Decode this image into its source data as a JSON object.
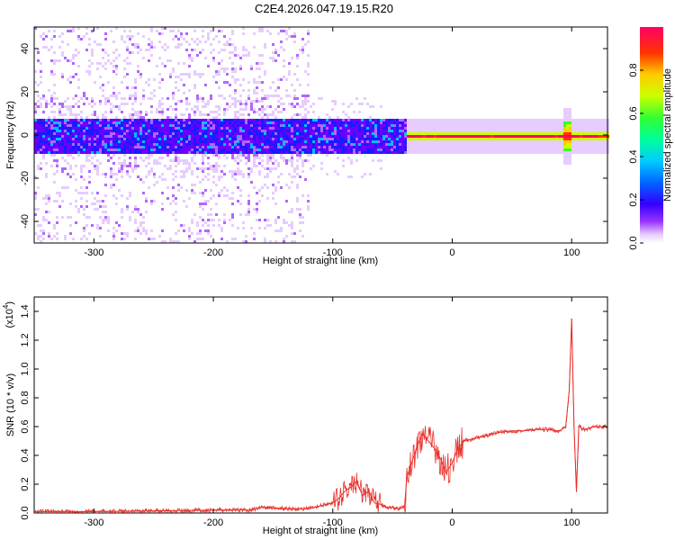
{
  "title": "C2E4.2026.047.19.15.R20",
  "colors": {
    "snr_line": "#e8302a",
    "axis": "#000000",
    "colormap": [
      "#ffffff",
      "#e6ccff",
      "#b266ff",
      "#6a00ff",
      "#1a1aff",
      "#00bfff",
      "#00ffbf",
      "#33ff33",
      "#ccff00",
      "#ffcc00",
      "#ff3300",
      "#ff0066"
    ]
  },
  "chart_data": [
    {
      "type": "heatmap",
      "title": "",
      "xlabel": "Height of straight line (km)",
      "ylabel": "Frequency (Hz)",
      "xlim": [
        -350,
        130
      ],
      "ylim": [
        -50,
        50
      ],
      "xticks": [
        -300,
        -200,
        -100,
        0,
        100
      ],
      "yticks": [
        -40,
        -20,
        0,
        20,
        40
      ],
      "xtick_labels": [
        "-300",
        "-200",
        "-100",
        "0",
        "100"
      ],
      "ytick_labels": [
        "-40",
        "-20",
        "0",
        "20",
        "40"
      ],
      "colorbar": {
        "label": "Normalized spectral amplitude",
        "range": [
          0,
          1
        ],
        "ticks": [
          0.0,
          0.2,
          0.4,
          0.6,
          0.8
        ],
        "tick_labels": [
          "0.0",
          "0.2",
          "0.4",
          "0.6",
          "0.8"
        ]
      },
      "description_points": {
        "scatter_region_x": [
          -350,
          -120
        ],
        "band_center_freq": 0,
        "band_halfwidth_noisy": 8,
        "band_halfwidth_clean": 2,
        "clean_start_x": -40,
        "spike_x": 95,
        "spike_halfwidth": 5
      }
    },
    {
      "type": "line",
      "title": "",
      "xlabel": "Height of straight line (km)",
      "ylabel": "SNR (10 * v/v)",
      "y_multiplier_label": "(x10",
      "y_multiplier_exp": "4",
      "y_multiplier_close": ")",
      "xlim": [
        -350,
        130
      ],
      "ylim": [
        0,
        1.5
      ],
      "xticks": [
        -300,
        -200,
        -100,
        0,
        100
      ],
      "yticks": [
        0.0,
        0.2,
        0.4,
        0.6,
        0.8,
        1.0,
        1.2,
        1.4
      ],
      "xtick_labels": [
        "-300",
        "-200",
        "-100",
        "0",
        "100"
      ],
      "ytick_labels": [
        "0.0",
        "0.2",
        "0.4",
        "0.6",
        "0.8",
        "1.0",
        "1.2",
        "1.4"
      ],
      "series": [
        {
          "name": "SNR",
          "x": [
            -350,
            -300,
            -250,
            -200,
            -170,
            -160,
            -140,
            -120,
            -110,
            -100,
            -95,
            -90,
            -85,
            -80,
            -75,
            -70,
            -65,
            -60,
            -55,
            -50,
            -45,
            -40,
            -38,
            -35,
            -30,
            -25,
            -20,
            -15,
            -10,
            -5,
            0,
            5,
            10,
            20,
            30,
            40,
            50,
            60,
            70,
            80,
            90,
            95,
            98,
            100,
            102,
            104,
            106,
            110,
            120,
            130
          ],
          "y": [
            0.01,
            0.01,
            0.015,
            0.02,
            0.02,
            0.04,
            0.03,
            0.03,
            0.05,
            0.07,
            0.1,
            0.15,
            0.18,
            0.22,
            0.12,
            0.15,
            0.07,
            0.06,
            0.04,
            0.04,
            0.03,
            0.04,
            0.25,
            0.32,
            0.45,
            0.55,
            0.5,
            0.45,
            0.38,
            0.28,
            0.35,
            0.45,
            0.5,
            0.52,
            0.54,
            0.56,
            0.57,
            0.57,
            0.58,
            0.58,
            0.57,
            0.6,
            0.85,
            1.35,
            0.6,
            0.15,
            0.6,
            0.58,
            0.6,
            0.6
          ]
        }
      ]
    }
  ]
}
